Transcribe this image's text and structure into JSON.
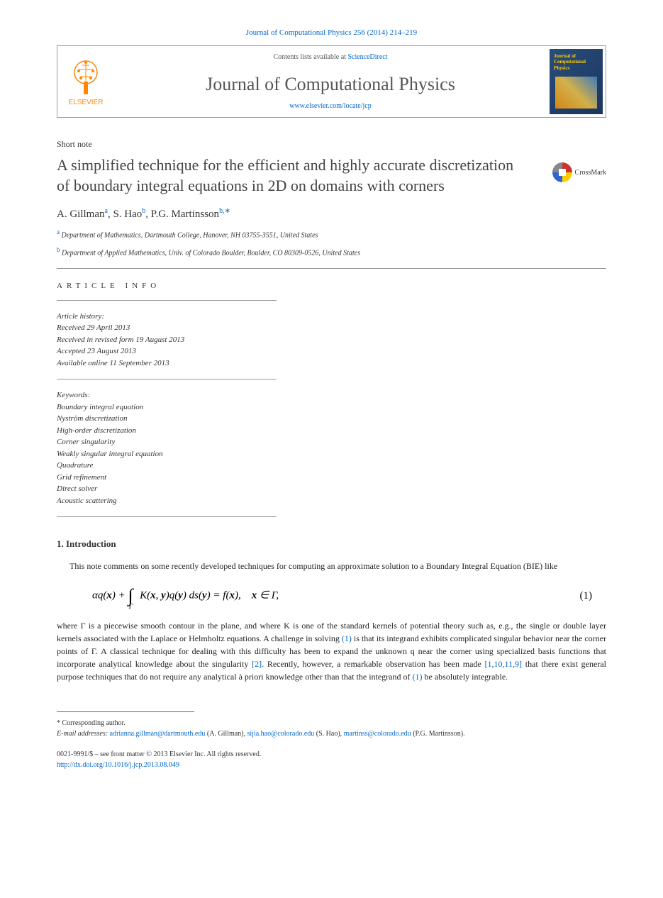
{
  "header": {
    "citation": "Journal of Computational Physics 256 (2014) 214–219",
    "contents_prefix": "Contents lists available at ",
    "contents_link": "ScienceDirect",
    "journal_name": "Journal of Computational Physics",
    "journal_url": "www.elsevier.com/locate/jcp",
    "publisher_name": "ELSEVIER",
    "cover_title": "Journal of Computational Physics"
  },
  "article": {
    "type": "Short note",
    "title": "A simplified technique for the efficient and highly accurate discretization of boundary integral equations in 2D on domains with corners",
    "crossmark_label": "CrossMark"
  },
  "authors": {
    "list_html": "A. Gillman",
    "a1_name": "A. Gillman",
    "a1_sup": "a",
    "a2_name": ", S. Hao",
    "a2_sup": "b",
    "a3_name": ", P.G. Martinsson",
    "a3_sup": "b,∗"
  },
  "affiliations": {
    "a_sup": "a",
    "a_text": " Department of Mathematics, Dartmouth College, Hanover, NH 03755-3551, United States",
    "b_sup": "b",
    "b_text": " Department of Applied Mathematics, Univ. of Colorado Boulder, Boulder, CO 80309-0526, United States"
  },
  "info": {
    "heading": "ARTICLE INFO",
    "history_label": "Article history:",
    "received": "Received 29 April 2013",
    "revised": "Received in revised form 19 August 2013",
    "accepted": "Accepted 23 August 2013",
    "online": "Available online 11 September 2013",
    "keywords_label": "Keywords:",
    "keywords": [
      "Boundary integral equation",
      "Nyström discretization",
      "High-order discretization",
      "Corner singularity",
      "Weakly singular integral equation",
      "Quadrature",
      "Grid refinement",
      "Direct solver",
      "Acoustic scattering"
    ]
  },
  "section1": {
    "heading": "1. Introduction",
    "para1": "This note comments on some recently developed techniques for computing an approximate solution to a Boundary Integral Equation (BIE) like",
    "equation_text": "αq(𝒙) + ∫ K(𝒙, 𝒚)q(𝒚) ds(𝒚) = f(𝒙),    𝒙 ∈ Γ,",
    "equation_gamma": "Γ",
    "equation_number": "(1)",
    "para2_a": "where Γ is a piecewise smooth contour in the plane, and where K is one of the standard kernels of potential theory such as, e.g., the single or double layer kernels associated with the Laplace or Helmholtz equations. A challenge in solving ",
    "ref1a": "(1)",
    "para2_b": " is that its integrand exhibits complicated singular behavior near the corner points of Γ. A classical technique for dealing with this difficulty has been to expand the unknown q near the corner using specialized basis functions that incorporate analytical knowledge about the singularity ",
    "ref2": "[2]",
    "para2_c": ". Recently, however, a remarkable observation has been made ",
    "ref3": "[1,10,11,9]",
    "para2_d": " that there exist general purpose techniques that do not require any analytical à priori knowledge other than that the integrand of ",
    "ref1b": "(1)",
    "para2_e": " be absolutely integrable."
  },
  "footer": {
    "corr_label": "* Corresponding author.",
    "email_label": "E-mail addresses: ",
    "email1": "adrianna.gillman@dartmouth.edu",
    "email1_who": " (A. Gillman), ",
    "email2": "sijia.hao@colorado.edu",
    "email2_who": " (S. Hao), ",
    "email3": "martinss@colorado.edu",
    "email3_who": " (P.G. Martinsson).",
    "copyright_line": "0021-9991/$ – see front matter © 2013 Elsevier Inc. All rights reserved.",
    "doi": "http://dx.doi.org/10.1016/j.jcp.2013.08.049"
  },
  "colors": {
    "link": "#0066cc",
    "publisher": "#ff8800",
    "text": "#222222",
    "heading": "#444444"
  }
}
